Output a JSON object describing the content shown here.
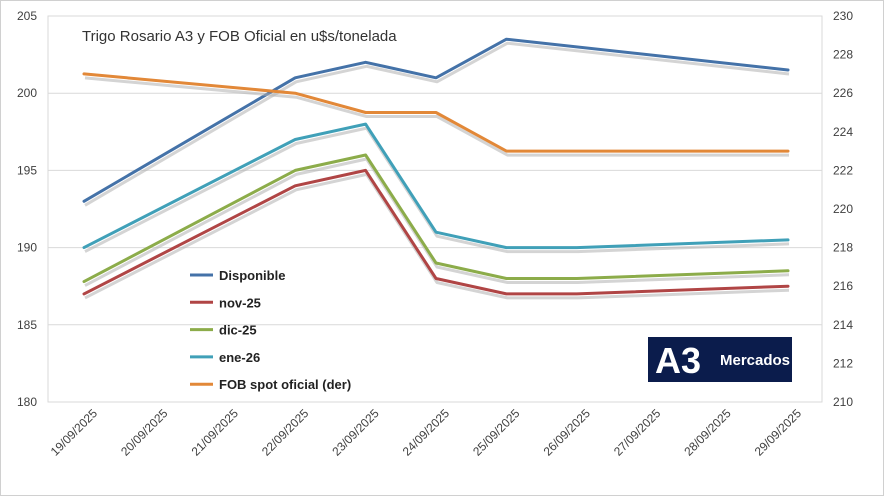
{
  "chart_data": {
    "type": "line",
    "title": "Trigo Rosario A3 y FOB Oficial en u$s/tonelada",
    "categories": [
      "19/09/2025",
      "20/09/2025",
      "21/09/2025",
      "22/09/2025",
      "23/09/2025",
      "24/09/2025",
      "25/09/2025",
      "26/09/2025",
      "27/09/2025",
      "28/09/2025",
      "29/09/2025"
    ],
    "y_left": {
      "min": 180,
      "max": 205,
      "ticks": [
        "180",
        "185",
        "190",
        "195",
        "200",
        "205"
      ]
    },
    "y_right": {
      "min": 210,
      "max": 230,
      "ticks": [
        "210",
        "212",
        "214",
        "216",
        "218",
        "220",
        "222",
        "224",
        "226",
        "228",
        "230"
      ]
    },
    "grid": true,
    "legend_position": "center-left",
    "series": [
      {
        "name": "Disponible",
        "color": "#4472a8",
        "axis": "left",
        "points": [
          [
            0,
            193
          ],
          [
            3,
            201
          ],
          [
            4,
            202
          ],
          [
            5,
            201
          ],
          [
            6,
            203.5
          ],
          [
            10,
            201.5
          ]
        ]
      },
      {
        "name": "nov-25",
        "color": "#b04545",
        "axis": "left",
        "points": [
          [
            0,
            187
          ],
          [
            3,
            194
          ],
          [
            4,
            195
          ],
          [
            5,
            188
          ],
          [
            6,
            187
          ],
          [
            7,
            187
          ],
          [
            10,
            187.5
          ]
        ]
      },
      {
        "name": "dic-25",
        "color": "#8cac4a",
        "axis": "left",
        "points": [
          [
            0,
            187.8
          ],
          [
            3,
            195
          ],
          [
            4,
            196
          ],
          [
            5,
            189
          ],
          [
            6,
            188
          ],
          [
            7,
            188
          ],
          [
            10,
            188.5
          ]
        ]
      },
      {
        "name": "ene-26",
        "color": "#40a0b8",
        "axis": "left",
        "points": [
          [
            0,
            190
          ],
          [
            3,
            197
          ],
          [
            4,
            198
          ],
          [
            5,
            191
          ],
          [
            6,
            190
          ],
          [
            7,
            190
          ],
          [
            10,
            190.5
          ]
        ]
      },
      {
        "name": "FOB spot oficial (der)",
        "color": "#e28838",
        "axis": "right",
        "points": [
          [
            0,
            227
          ],
          [
            3,
            226
          ],
          [
            4,
            225
          ],
          [
            5,
            225
          ],
          [
            6,
            223
          ],
          [
            7,
            223
          ],
          [
            10,
            223
          ]
        ]
      }
    ]
  },
  "logo": {
    "mark": "A3",
    "text": "Mercados"
  }
}
